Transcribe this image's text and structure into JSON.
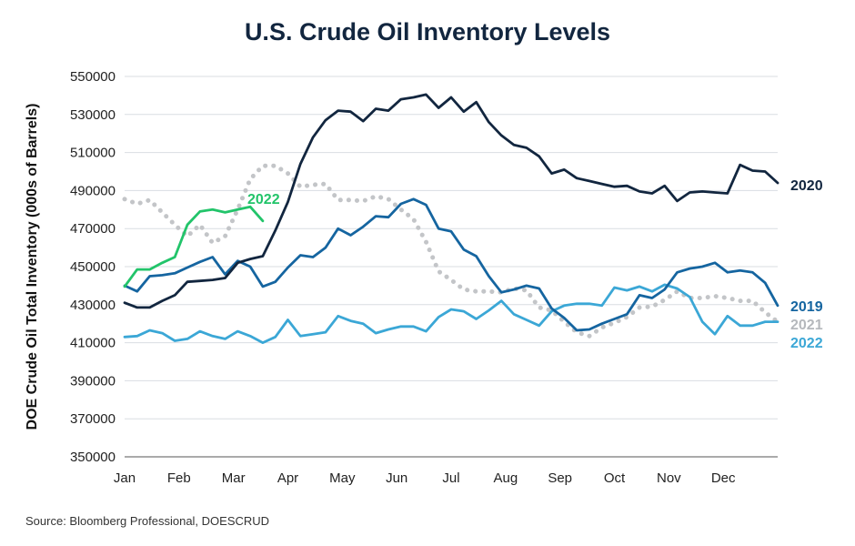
{
  "chart_data": {
    "type": "line",
    "title": "U.S. Crude Oil Inventory Levels",
    "ylabel": "DOE Crude Oil Total Inventory (000s of Barrels)",
    "xlabel": "",
    "source": "Source: Bloomberg Professional, DOESCRUD",
    "ylim": [
      350000,
      550000
    ],
    "yticks": [
      350000,
      370000,
      390000,
      410000,
      430000,
      450000,
      470000,
      490000,
      510000,
      530000,
      550000
    ],
    "xlim": [
      1,
      53
    ],
    "month_labels": [
      "Jan",
      "Feb",
      "Mar",
      "Apr",
      "May",
      "Jun",
      "Jul",
      "Aug",
      "Sep",
      "Oct",
      "Nov",
      "Dec"
    ],
    "grid": true,
    "series": [
      {
        "name": "2019",
        "color": "#1565a0",
        "dash": "solid",
        "values": [
          440000,
          437000,
          445000,
          445500,
          446500,
          449500,
          452500,
          455000,
          446000,
          453000,
          450000,
          439500,
          442000,
          449500,
          456000,
          455000,
          460000,
          470000,
          466500,
          471000,
          476500,
          476000,
          483000,
          485500,
          482500,
          470000,
          468500,
          459000,
          455500,
          445000,
          436500,
          438000,
          440000,
          438500,
          428000,
          423000,
          416500,
          417000,
          420000,
          422500,
          425000,
          435000,
          433500,
          438000,
          447000,
          449000,
          450000,
          452000,
          447000,
          448000,
          447000,
          441500,
          429500
        ]
      },
      {
        "name": "2020",
        "color": "#12263f",
        "dash": "solid",
        "values": [
          431000,
          428500,
          428500,
          432000,
          435000,
          442000,
          442500,
          443000,
          444000,
          452000,
          454000,
          455500,
          469000,
          484000,
          504000,
          518000,
          527000,
          532000,
          531500,
          526500,
          533000,
          532000,
          538000,
          539000,
          540500,
          533500,
          539000,
          531500,
          536500,
          526000,
          519000,
          514000,
          512500,
          508000,
          499000,
          501000,
          496500,
          495000,
          493500,
          492000,
          492500,
          489500,
          488500,
          492500,
          484500,
          489000,
          489500,
          489000,
          488500,
          503500,
          500500,
          500000,
          494000
        ]
      },
      {
        "name": "2021",
        "color": "#c3c5c8",
        "dash": "dotted",
        "values": [
          485500,
          483000,
          485000,
          478500,
          472000,
          466000,
          472000,
          462500,
          466000,
          480000,
          496000,
          503000,
          503000,
          499000,
          492000,
          493000,
          493500,
          485000,
          485000,
          484500,
          487000,
          485500,
          480000,
          475000,
          463000,
          447500,
          443000,
          438000,
          437000,
          437000,
          436500,
          438500,
          437500,
          428500,
          427000,
          421000,
          415500,
          413500,
          418000,
          420500,
          423500,
          428500,
          429000,
          432500,
          437000,
          433500,
          433500,
          434500,
          433500,
          432000,
          432000,
          426000,
          421000
        ]
      },
      {
        "name": "2022",
        "color": "#22c46a",
        "dash": "solid",
        "values": [
          439500,
          448500,
          448500,
          452000,
          455000,
          472000,
          479000,
          480000,
          478500,
          480000,
          481500,
          474000
        ]
      },
      {
        "name": "2022",
        "color": "#3ba7d6",
        "dash": "solid",
        "values": [
          413000,
          413500,
          416500,
          415000,
          411000,
          412000,
          416000,
          413500,
          412000,
          416000,
          413500,
          410000,
          413000,
          422000,
          413500,
          414500,
          415500,
          424000,
          421500,
          420000,
          415000,
          417000,
          418500,
          418500,
          416000,
          423500,
          427500,
          426500,
          422500,
          427000,
          432000,
          425000,
          422000,
          419000,
          426500,
          429500,
          430500,
          430500,
          429500,
          439000,
          437500,
          439500,
          437000,
          440500,
          438500,
          434000,
          421000,
          414500,
          424000,
          419000,
          419000,
          421000,
          421000
        ]
      }
    ],
    "end_labels": [
      "2020",
      "2019",
      "2021",
      "2022"
    ],
    "inline_label": "2022"
  }
}
